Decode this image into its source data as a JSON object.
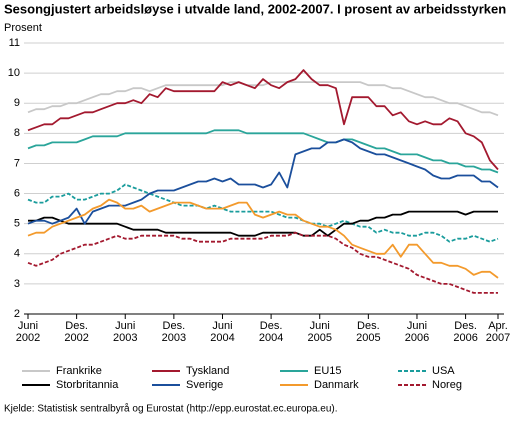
{
  "chart_data": {
    "type": "line",
    "title": "Sesongjustert arbeidsløyse i utvalde land, 2002-2007. I prosent av arbeidsstyrken",
    "y_label": "Prosent",
    "source": "Kjelde: Statistisk sentralbyrå og Eurostat (http://epp.eurostat.ec.europa.eu).",
    "categories": [
      [
        "Juni",
        "2002"
      ],
      null,
      null,
      null,
      null,
      null,
      [
        "Des.",
        "2002"
      ],
      null,
      null,
      null,
      null,
      null,
      [
        "Juni",
        "2003"
      ],
      null,
      null,
      null,
      null,
      null,
      [
        "Des.",
        "2003"
      ],
      null,
      null,
      null,
      null,
      null,
      [
        "Juni",
        "2004"
      ],
      null,
      null,
      null,
      null,
      null,
      [
        "Des.",
        "2004"
      ],
      null,
      null,
      null,
      null,
      null,
      [
        "Juni",
        "2005"
      ],
      null,
      null,
      null,
      null,
      null,
      [
        "Des.",
        "2005"
      ],
      null,
      null,
      null,
      null,
      null,
      [
        "Juni",
        "2006"
      ],
      null,
      null,
      null,
      null,
      null,
      [
        "Des.",
        "2006"
      ],
      null,
      null,
      null,
      [
        "Apr.",
        "2007"
      ]
    ],
    "ylim": [
      2,
      11
    ],
    "yticks": [
      2,
      3,
      4,
      5,
      6,
      7,
      8,
      9,
      10,
      11
    ],
    "grid": true,
    "series": [
      {
        "name": "Frankrike",
        "color": "#c8c8c8",
        "dashed": false,
        "values": [
          8.7,
          8.8,
          8.8,
          8.9,
          8.9,
          9.0,
          9.0,
          9.1,
          9.2,
          9.3,
          9.3,
          9.4,
          9.4,
          9.5,
          9.5,
          9.4,
          9.5,
          9.6,
          9.6,
          9.6,
          9.6,
          9.6,
          9.6,
          9.6,
          9.6,
          9.7,
          9.7,
          9.6,
          9.6,
          9.6,
          9.7,
          9.7,
          9.7,
          9.7,
          9.7,
          9.7,
          9.7,
          9.7,
          9.7,
          9.7,
          9.7,
          9.7,
          9.6,
          9.6,
          9.6,
          9.5,
          9.5,
          9.4,
          9.3,
          9.2,
          9.2,
          9.1,
          9.0,
          9.0,
          8.9,
          8.8,
          8.7,
          8.7,
          8.6
        ]
      },
      {
        "name": "Tyskland",
        "color": "#a3192f",
        "dashed": false,
        "values": [
          8.1,
          8.2,
          8.3,
          8.3,
          8.5,
          8.5,
          8.6,
          8.7,
          8.7,
          8.8,
          8.9,
          9.0,
          9.0,
          9.1,
          9.0,
          9.3,
          9.2,
          9.5,
          9.4,
          9.4,
          9.4,
          9.4,
          9.4,
          9.4,
          9.7,
          9.6,
          9.7,
          9.6,
          9.5,
          9.8,
          9.6,
          9.5,
          9.7,
          9.8,
          10.1,
          9.8,
          9.6,
          9.6,
          9.5,
          8.3,
          9.2,
          9.2,
          9.2,
          8.9,
          8.9,
          8.6,
          8.7,
          8.4,
          8.3,
          8.4,
          8.3,
          8.3,
          8.5,
          8.4,
          8.0,
          7.9,
          7.7,
          7.1,
          6.8
        ]
      },
      {
        "name": "EU15",
        "color": "#2aa59a",
        "dashed": false,
        "values": [
          7.5,
          7.6,
          7.6,
          7.7,
          7.7,
          7.7,
          7.7,
          7.8,
          7.9,
          7.9,
          7.9,
          7.9,
          8.0,
          8.0,
          8.0,
          8.0,
          8.0,
          8.0,
          8.0,
          8.0,
          8.0,
          8.0,
          8.0,
          8.1,
          8.1,
          8.1,
          8.1,
          8.0,
          8.0,
          8.0,
          8.0,
          8.0,
          8.0,
          8.0,
          8.0,
          7.9,
          7.8,
          7.7,
          7.7,
          7.8,
          7.8,
          7.7,
          7.6,
          7.5,
          7.5,
          7.4,
          7.3,
          7.3,
          7.3,
          7.2,
          7.1,
          7.1,
          7.0,
          7.0,
          6.9,
          6.9,
          6.8,
          6.8,
          6.7
        ]
      },
      {
        "name": "USA",
        "color": "#1a9c9c",
        "dashed": true,
        "values": [
          5.8,
          5.7,
          5.7,
          5.9,
          5.9,
          6.0,
          5.8,
          5.8,
          5.9,
          6.0,
          6.0,
          6.1,
          6.3,
          6.2,
          6.1,
          6.0,
          5.9,
          5.8,
          5.7,
          5.6,
          5.6,
          5.6,
          5.5,
          5.6,
          5.5,
          5.4,
          5.4,
          5.4,
          5.4,
          5.4,
          5.4,
          5.3,
          5.2,
          5.2,
          5.1,
          5.0,
          5.0,
          4.9,
          5.0,
          5.1,
          5.0,
          4.9,
          4.9,
          4.7,
          4.8,
          4.7,
          4.7,
          4.6,
          4.6,
          4.7,
          4.7,
          4.6,
          4.4,
          4.5,
          4.5,
          4.6,
          4.5,
          4.4,
          4.5
        ]
      },
      {
        "name": "Storbritannia",
        "color": "#000000",
        "dashed": false,
        "values": [
          5.1,
          5.1,
          5.2,
          5.2,
          5.1,
          5.0,
          5.0,
          5.0,
          5.0,
          5.0,
          5.0,
          5.0,
          4.9,
          4.8,
          4.8,
          4.8,
          4.8,
          4.7,
          4.7,
          4.7,
          4.7,
          4.7,
          4.7,
          4.7,
          4.7,
          4.7,
          4.6,
          4.6,
          4.6,
          4.7,
          4.7,
          4.7,
          4.7,
          4.7,
          4.6,
          4.6,
          4.8,
          4.6,
          4.8,
          5.0,
          5.0,
          5.1,
          5.1,
          5.2,
          5.2,
          5.3,
          5.3,
          5.4,
          5.4,
          5.4,
          5.4,
          5.4,
          5.4,
          5.4,
          5.3,
          5.4,
          5.4,
          5.4,
          5.4
        ]
      },
      {
        "name": "Sverige",
        "color": "#1b4f9c",
        "dashed": false,
        "values": [
          5.0,
          5.1,
          5.1,
          5.0,
          5.1,
          5.2,
          5.5,
          5.0,
          5.4,
          5.5,
          5.6,
          5.6,
          5.6,
          5.7,
          5.8,
          6.0,
          6.1,
          6.1,
          6.1,
          6.2,
          6.3,
          6.4,
          6.4,
          6.5,
          6.4,
          6.5,
          6.3,
          6.3,
          6.3,
          6.2,
          6.3,
          6.7,
          6.2,
          7.3,
          7.4,
          7.5,
          7.5,
          7.7,
          7.7,
          7.8,
          7.7,
          7.5,
          7.4,
          7.3,
          7.3,
          7.2,
          7.1,
          7.0,
          6.9,
          6.8,
          6.6,
          6.5,
          6.5,
          6.6,
          6.6,
          6.6,
          6.4,
          6.4,
          6.2
        ]
      },
      {
        "name": "Danmark",
        "color": "#f39a2c",
        "dashed": false,
        "values": [
          4.6,
          4.7,
          4.7,
          4.9,
          5.0,
          5.1,
          5.2,
          5.3,
          5.5,
          5.6,
          5.8,
          5.7,
          5.5,
          5.5,
          5.6,
          5.4,
          5.5,
          5.6,
          5.7,
          5.7,
          5.7,
          5.6,
          5.5,
          5.5,
          5.5,
          5.6,
          5.7,
          5.7,
          5.3,
          5.2,
          5.3,
          5.4,
          5.3,
          5.3,
          5.1,
          5.0,
          4.9,
          4.9,
          4.8,
          4.6,
          4.3,
          4.2,
          4.1,
          4.0,
          4.0,
          4.3,
          3.9,
          4.3,
          4.3,
          4.0,
          3.7,
          3.7,
          3.6,
          3.6,
          3.5,
          3.3,
          3.4,
          3.4,
          3.2
        ]
      },
      {
        "name": "Noreg",
        "color": "#a3192f",
        "dashed": true,
        "values": [
          3.7,
          3.6,
          3.7,
          3.8,
          4.0,
          4.1,
          4.2,
          4.3,
          4.3,
          4.4,
          4.5,
          4.6,
          4.5,
          4.5,
          4.6,
          4.6,
          4.6,
          4.6,
          4.6,
          4.5,
          4.5,
          4.4,
          4.4,
          4.4,
          4.4,
          4.5,
          4.5,
          4.5,
          4.5,
          4.5,
          4.6,
          4.6,
          4.6,
          4.7,
          4.6,
          4.6,
          4.6,
          4.6,
          4.5,
          4.3,
          4.2,
          4.0,
          3.9,
          3.9,
          3.8,
          3.7,
          3.6,
          3.5,
          3.3,
          3.2,
          3.1,
          3.0,
          3.0,
          2.9,
          2.8,
          2.7,
          2.7,
          2.7,
          2.7
        ]
      }
    ]
  }
}
